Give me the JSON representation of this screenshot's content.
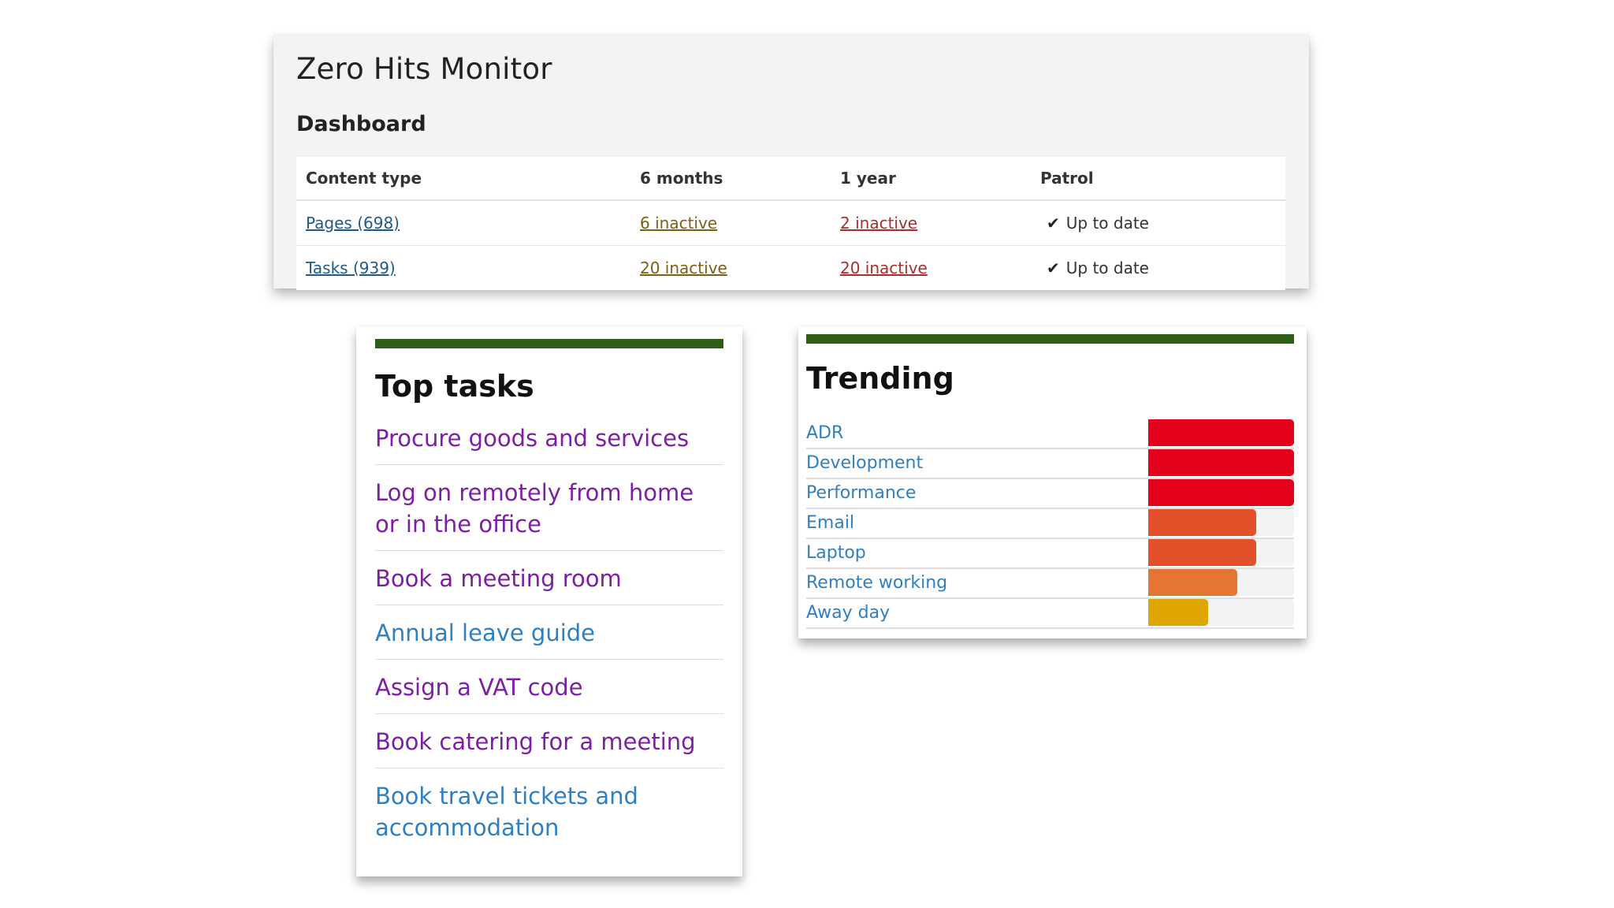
{
  "monitor": {
    "title": "Zero Hits Monitor",
    "subtitle": "Dashboard",
    "columns": [
      "Content type",
      "6 months",
      "1 year",
      "Patrol"
    ],
    "rows": [
      {
        "type": "Pages (698)",
        "six_months": "6 inactive",
        "one_year": "2 inactive",
        "patrol": "Up to date"
      },
      {
        "type": "Tasks (939)",
        "six_months": "20 inactive",
        "one_year": "20 inactive",
        "patrol": "Up to date"
      }
    ],
    "check_icon": "checkmark-icon"
  },
  "top_tasks": {
    "heading": "Top tasks",
    "bar_color": "#2c5f15",
    "items": [
      {
        "label": "Procure goods and services",
        "color": "#7d1fa6"
      },
      {
        "label": "Log on remotely from home or in the office",
        "color": "#7d1fa6"
      },
      {
        "label": "Book a meeting room",
        "color": "#7d1fa6"
      },
      {
        "label": "Annual leave guide",
        "color": "#2f7fc1"
      },
      {
        "label": "Assign a VAT code",
        "color": "#7d1fa6"
      },
      {
        "label": "Book catering for a meeting",
        "color": "#7d1fa6"
      },
      {
        "label": "Book travel tickets and accommodation",
        "color": "#2f7fc1"
      }
    ]
  },
  "trending": {
    "heading": "Trending",
    "bar_color": "#2c5f15",
    "items": [
      {
        "label": "ADR",
        "level": 1.0,
        "color": "#e3001b"
      },
      {
        "label": "Development",
        "level": 1.0,
        "color": "#e3001b"
      },
      {
        "label": "Performance",
        "level": 1.0,
        "color": "#e3001b"
      },
      {
        "label": "Email",
        "level": 0.74,
        "color": "#e4502a"
      },
      {
        "label": "Laptop",
        "level": 0.74,
        "color": "#e4502a"
      },
      {
        "label": "Remote working",
        "level": 0.61,
        "color": "#e57533"
      },
      {
        "label": "Away day",
        "level": 0.41,
        "color": "#dfa600"
      }
    ]
  }
}
